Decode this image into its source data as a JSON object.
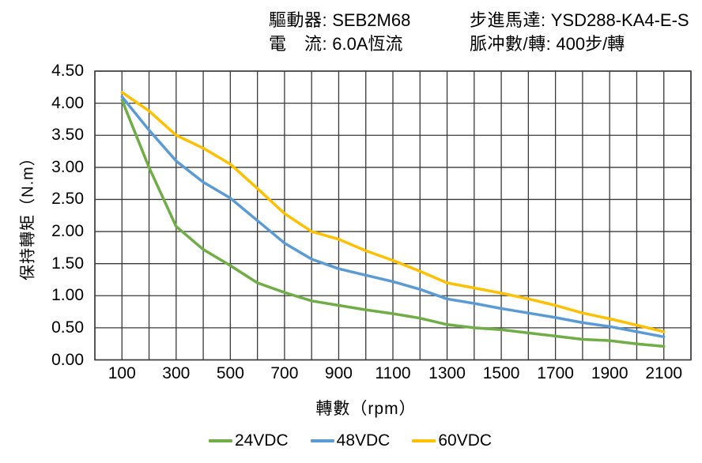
{
  "header": {
    "driver_label": "驅動器:",
    "driver_value": "SEB2M68",
    "current_label": "電　流:",
    "current_value": "6.0A恆流",
    "motor_label": "步進馬達:",
    "motor_value": "YSD288-KA4-E-S",
    "pulse_label": "脈冲數/轉:",
    "pulse_value": "400步/轉"
  },
  "chart_data": {
    "type": "line",
    "title": "",
    "xlabel": "轉數（rpm）",
    "ylabel": "保持轉矩（N.m）",
    "xlim": [
      0,
      2200
    ],
    "ylim": [
      0,
      4.5
    ],
    "grid": {
      "on": true,
      "x_step_rpm": 100,
      "y_step_nm": 0.5,
      "color": "#3a3a3a"
    },
    "legend_position": "bottom",
    "x_ticks": [
      "100",
      "300",
      "500",
      "700",
      "900",
      "1100",
      "1300",
      "1500",
      "1700",
      "1900",
      "2100"
    ],
    "x_tick_values": [
      100,
      300,
      500,
      700,
      900,
      1100,
      1300,
      1500,
      1700,
      1900,
      2100
    ],
    "y_ticks": [
      "4.50",
      "4.00",
      "3.50",
      "3.00",
      "2.50",
      "2.00",
      "1.50",
      "1.00",
      "0.50",
      "0.00"
    ],
    "y_tick_values": [
      4.5,
      4.0,
      3.5,
      3.0,
      2.5,
      2.0,
      1.5,
      1.0,
      0.5,
      0.0
    ],
    "x": [
      100,
      200,
      300,
      400,
      500,
      600,
      700,
      800,
      900,
      1000,
      1100,
      1200,
      1300,
      1400,
      1500,
      1600,
      1700,
      1800,
      1900,
      2000,
      2100
    ],
    "series": [
      {
        "name": "24VDC",
        "color": "#70AD47",
        "values": [
          4.05,
          3.0,
          2.08,
          1.72,
          1.47,
          1.2,
          1.05,
          0.92,
          0.85,
          0.78,
          0.72,
          0.65,
          0.55,
          0.5,
          0.47,
          0.42,
          0.37,
          0.32,
          0.3,
          0.25,
          0.21
        ]
      },
      {
        "name": "48VDC",
        "color": "#5B9BD5",
        "values": [
          4.1,
          3.58,
          3.1,
          2.77,
          2.52,
          2.17,
          1.82,
          1.57,
          1.42,
          1.32,
          1.22,
          1.1,
          0.95,
          0.88,
          0.8,
          0.73,
          0.66,
          0.58,
          0.52,
          0.44,
          0.36
        ]
      },
      {
        "name": "60VDC",
        "color": "#FFC000",
        "values": [
          4.17,
          3.88,
          3.5,
          3.3,
          3.05,
          2.67,
          2.28,
          2.0,
          1.88,
          1.7,
          1.55,
          1.38,
          1.2,
          1.12,
          1.04,
          0.95,
          0.85,
          0.73,
          0.64,
          0.54,
          0.44
        ]
      }
    ]
  }
}
